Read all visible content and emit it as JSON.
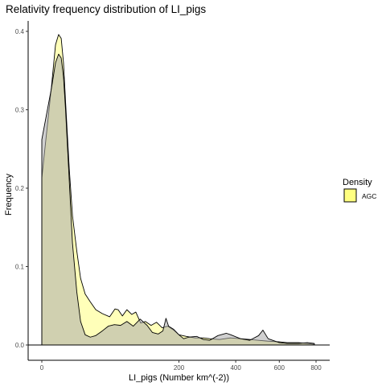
{
  "chart_data": {
    "type": "area",
    "title": "Relativity frequency distribution of LI_pigs",
    "xlabel": "LI_pigs (Number km^(-2))",
    "ylabel": "Frequency",
    "x_scale": "sqrt",
    "xlim": [
      0,
      800
    ],
    "ylim": [
      0,
      0.4
    ],
    "x_ticks": [
      0,
      200,
      400,
      600,
      800
    ],
    "x_tick_labels": [
      "0",
      "200",
      "400",
      "600",
      "800"
    ],
    "y_ticks": [
      0.0,
      0.1,
      0.2,
      0.3,
      0.4
    ],
    "y_tick_labels": [
      "0.0",
      "0.1",
      "0.2",
      "0.3",
      "0.4"
    ],
    "grid": false,
    "legend": {
      "title": "Density",
      "position": "right",
      "entries": [
        {
          "label": "AGC",
          "color": "#ffff80"
        }
      ]
    },
    "series": [
      {
        "name": "AGC",
        "fill": "#ffff80",
        "x": [
          0,
          1,
          2,
          3,
          4,
          5,
          6,
          8,
          10,
          13,
          16,
          20,
          25,
          31,
          39,
          49,
          57,
          62,
          69,
          77,
          86,
          94,
          104,
          114,
          127,
          140,
          154,
          169,
          185,
          200,
          222,
          250,
          278,
          300,
          336,
          378,
          420,
          462,
          500,
          540,
          600,
          640,
          700,
          750,
          790
        ],
        "y": [
          0.213,
          0.33,
          0.383,
          0.396,
          0.391,
          0.36,
          0.31,
          0.225,
          0.165,
          0.12,
          0.085,
          0.065,
          0.055,
          0.045,
          0.04,
          0.036,
          0.046,
          0.045,
          0.037,
          0.045,
          0.039,
          0.042,
          0.028,
          0.03,
          0.025,
          0.029,
          0.022,
          0.024,
          0.019,
          0.013,
          0.011,
          0.009,
          0.009,
          0.008,
          0.007,
          0.009,
          0.008,
          0.007,
          0.006,
          0.005,
          0.004,
          0.003,
          0.003,
          0.002,
          0.001
        ]
      },
      {
        "name": "",
        "fill": "#a9a9a9",
        "x": [
          0,
          1,
          2,
          3,
          4,
          5,
          6,
          8,
          10,
          13,
          16,
          20,
          25,
          31,
          39,
          47,
          56,
          66,
          77,
          89,
          103,
          118,
          130,
          144,
          156,
          164,
          171,
          185,
          200,
          214,
          230,
          255,
          278,
          300,
          330,
          362,
          380,
          420,
          460,
          500,
          520,
          545,
          600,
          640,
          700,
          750,
          790
        ],
        "y": [
          0.262,
          0.328,
          0.36,
          0.371,
          0.366,
          0.342,
          0.3,
          0.21,
          0.13,
          0.068,
          0.03,
          0.013,
          0.01,
          0.012,
          0.018,
          0.024,
          0.026,
          0.025,
          0.03,
          0.024,
          0.033,
          0.025,
          0.016,
          0.014,
          0.018,
          0.034,
          0.024,
          0.02,
          0.013,
          0.008,
          0.01,
          0.011,
          0.007,
          0.006,
          0.012,
          0.015,
          0.013,
          0.008,
          0.006,
          0.012,
          0.019,
          0.008,
          0.003,
          0.002,
          0.002,
          0.003,
          0.002
        ]
      }
    ]
  }
}
